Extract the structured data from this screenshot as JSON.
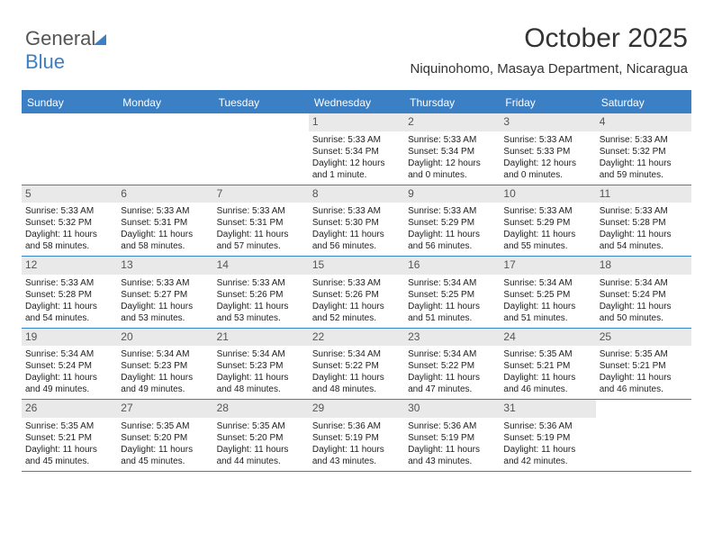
{
  "logo": {
    "part1": "General",
    "part2": "Blue"
  },
  "title": "October 2025",
  "subtitle": "Niquinohomo, Masaya Department, Nicaragua",
  "colors": {
    "header_bg": "#3b7fc4",
    "header_text": "#ffffff",
    "daynum_bg": "#e9e9e9",
    "text": "#333333"
  },
  "day_headers": [
    "Sunday",
    "Monday",
    "Tuesday",
    "Wednesday",
    "Thursday",
    "Friday",
    "Saturday"
  ],
  "weeks": [
    [
      null,
      null,
      null,
      {
        "n": "1",
        "sr": "Sunrise: 5:33 AM",
        "ss": "Sunset: 5:34 PM",
        "dl": "Daylight: 12 hours and 1 minute."
      },
      {
        "n": "2",
        "sr": "Sunrise: 5:33 AM",
        "ss": "Sunset: 5:34 PM",
        "dl": "Daylight: 12 hours and 0 minutes."
      },
      {
        "n": "3",
        "sr": "Sunrise: 5:33 AM",
        "ss": "Sunset: 5:33 PM",
        "dl": "Daylight: 12 hours and 0 minutes."
      },
      {
        "n": "4",
        "sr": "Sunrise: 5:33 AM",
        "ss": "Sunset: 5:32 PM",
        "dl": "Daylight: 11 hours and 59 minutes."
      }
    ],
    [
      {
        "n": "5",
        "sr": "Sunrise: 5:33 AM",
        "ss": "Sunset: 5:32 PM",
        "dl": "Daylight: 11 hours and 58 minutes."
      },
      {
        "n": "6",
        "sr": "Sunrise: 5:33 AM",
        "ss": "Sunset: 5:31 PM",
        "dl": "Daylight: 11 hours and 58 minutes."
      },
      {
        "n": "7",
        "sr": "Sunrise: 5:33 AM",
        "ss": "Sunset: 5:31 PM",
        "dl": "Daylight: 11 hours and 57 minutes."
      },
      {
        "n": "8",
        "sr": "Sunrise: 5:33 AM",
        "ss": "Sunset: 5:30 PM",
        "dl": "Daylight: 11 hours and 56 minutes."
      },
      {
        "n": "9",
        "sr": "Sunrise: 5:33 AM",
        "ss": "Sunset: 5:29 PM",
        "dl": "Daylight: 11 hours and 56 minutes."
      },
      {
        "n": "10",
        "sr": "Sunrise: 5:33 AM",
        "ss": "Sunset: 5:29 PM",
        "dl": "Daylight: 11 hours and 55 minutes."
      },
      {
        "n": "11",
        "sr": "Sunrise: 5:33 AM",
        "ss": "Sunset: 5:28 PM",
        "dl": "Daylight: 11 hours and 54 minutes."
      }
    ],
    [
      {
        "n": "12",
        "sr": "Sunrise: 5:33 AM",
        "ss": "Sunset: 5:28 PM",
        "dl": "Daylight: 11 hours and 54 minutes."
      },
      {
        "n": "13",
        "sr": "Sunrise: 5:33 AM",
        "ss": "Sunset: 5:27 PM",
        "dl": "Daylight: 11 hours and 53 minutes."
      },
      {
        "n": "14",
        "sr": "Sunrise: 5:33 AM",
        "ss": "Sunset: 5:26 PM",
        "dl": "Daylight: 11 hours and 53 minutes."
      },
      {
        "n": "15",
        "sr": "Sunrise: 5:33 AM",
        "ss": "Sunset: 5:26 PM",
        "dl": "Daylight: 11 hours and 52 minutes."
      },
      {
        "n": "16",
        "sr": "Sunrise: 5:34 AM",
        "ss": "Sunset: 5:25 PM",
        "dl": "Daylight: 11 hours and 51 minutes."
      },
      {
        "n": "17",
        "sr": "Sunrise: 5:34 AM",
        "ss": "Sunset: 5:25 PM",
        "dl": "Daylight: 11 hours and 51 minutes."
      },
      {
        "n": "18",
        "sr": "Sunrise: 5:34 AM",
        "ss": "Sunset: 5:24 PM",
        "dl": "Daylight: 11 hours and 50 minutes."
      }
    ],
    [
      {
        "n": "19",
        "sr": "Sunrise: 5:34 AM",
        "ss": "Sunset: 5:24 PM",
        "dl": "Daylight: 11 hours and 49 minutes."
      },
      {
        "n": "20",
        "sr": "Sunrise: 5:34 AM",
        "ss": "Sunset: 5:23 PM",
        "dl": "Daylight: 11 hours and 49 minutes."
      },
      {
        "n": "21",
        "sr": "Sunrise: 5:34 AM",
        "ss": "Sunset: 5:23 PM",
        "dl": "Daylight: 11 hours and 48 minutes."
      },
      {
        "n": "22",
        "sr": "Sunrise: 5:34 AM",
        "ss": "Sunset: 5:22 PM",
        "dl": "Daylight: 11 hours and 48 minutes."
      },
      {
        "n": "23",
        "sr": "Sunrise: 5:34 AM",
        "ss": "Sunset: 5:22 PM",
        "dl": "Daylight: 11 hours and 47 minutes."
      },
      {
        "n": "24",
        "sr": "Sunrise: 5:35 AM",
        "ss": "Sunset: 5:21 PM",
        "dl": "Daylight: 11 hours and 46 minutes."
      },
      {
        "n": "25",
        "sr": "Sunrise: 5:35 AM",
        "ss": "Sunset: 5:21 PM",
        "dl": "Daylight: 11 hours and 46 minutes."
      }
    ],
    [
      {
        "n": "26",
        "sr": "Sunrise: 5:35 AM",
        "ss": "Sunset: 5:21 PM",
        "dl": "Daylight: 11 hours and 45 minutes."
      },
      {
        "n": "27",
        "sr": "Sunrise: 5:35 AM",
        "ss": "Sunset: 5:20 PM",
        "dl": "Daylight: 11 hours and 45 minutes."
      },
      {
        "n": "28",
        "sr": "Sunrise: 5:35 AM",
        "ss": "Sunset: 5:20 PM",
        "dl": "Daylight: 11 hours and 44 minutes."
      },
      {
        "n": "29",
        "sr": "Sunrise: 5:36 AM",
        "ss": "Sunset: 5:19 PM",
        "dl": "Daylight: 11 hours and 43 minutes."
      },
      {
        "n": "30",
        "sr": "Sunrise: 5:36 AM",
        "ss": "Sunset: 5:19 PM",
        "dl": "Daylight: 11 hours and 43 minutes."
      },
      {
        "n": "31",
        "sr": "Sunrise: 5:36 AM",
        "ss": "Sunset: 5:19 PM",
        "dl": "Daylight: 11 hours and 42 minutes."
      },
      null
    ]
  ]
}
